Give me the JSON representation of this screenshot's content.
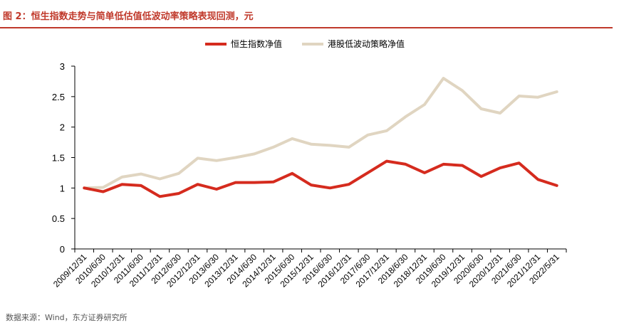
{
  "header": {
    "title": "图 2：恒生指数走势与简单低估值低波动率策略表现回测，元"
  },
  "footer": {
    "source": "数据来源：Wind，东方证券研究所"
  },
  "colors": {
    "title_red": "#c0392b",
    "series_hsi": "#d52b1e",
    "series_lowvol": "#e0d5c1",
    "axis": "#000000"
  },
  "chart_data": {
    "type": "line",
    "x": [
      "2009/12/31",
      "2010/6/30",
      "2010/12/31",
      "2011/6/30",
      "2011/12/31",
      "2012/6/30",
      "2012/12/31",
      "2013/6/30",
      "2013/12/31",
      "2014/6/30",
      "2014/12/31",
      "2015/6/30",
      "2015/12/31",
      "2016/6/30",
      "2016/12/31",
      "2017/6/30",
      "2017/12/31",
      "2018/6/30",
      "2018/12/31",
      "2019/6/30",
      "2019/12/31",
      "2020/6/30",
      "2020/12/31",
      "2021/6/30",
      "2021/12/31",
      "2022/5/31"
    ],
    "series": [
      {
        "name": "恒生指数净值",
        "color": "#d52b1e",
        "values": [
          1.0,
          0.94,
          1.06,
          1.04,
          0.86,
          0.91,
          1.06,
          0.98,
          1.09,
          1.09,
          1.1,
          1.24,
          1.05,
          1.0,
          1.06,
          1.25,
          1.44,
          1.39,
          1.25,
          1.39,
          1.37,
          1.19,
          1.33,
          1.41,
          1.14,
          1.04
        ]
      },
      {
        "name": "港股低波动策略净值",
        "color": "#e0d5c1",
        "values": [
          1.0,
          1.01,
          1.18,
          1.23,
          1.15,
          1.24,
          1.49,
          1.45,
          1.5,
          1.56,
          1.67,
          1.81,
          1.72,
          1.7,
          1.67,
          1.87,
          1.94,
          2.17,
          2.37,
          2.8,
          2.6,
          2.3,
          2.23,
          2.51,
          2.49,
          2.58
        ]
      }
    ],
    "ylim": [
      0,
      3
    ],
    "yticks": [
      "0",
      "0.5",
      "1",
      "1.5",
      "2",
      "2.5",
      "3"
    ],
    "grid": false,
    "legend": "top-center"
  }
}
